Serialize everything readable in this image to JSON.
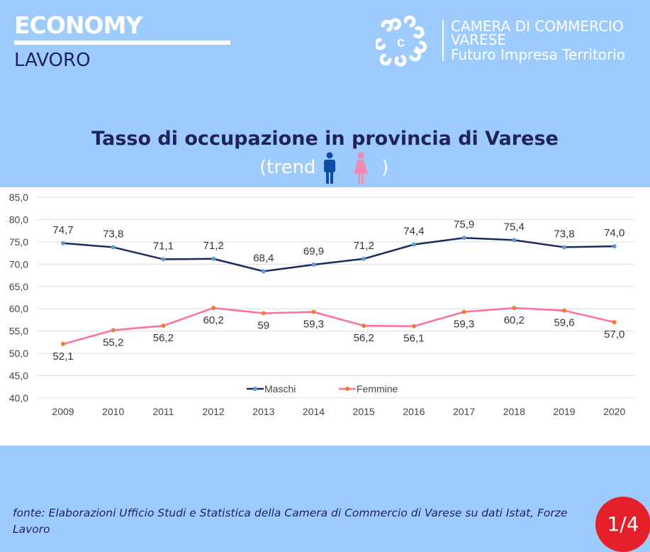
{
  "header": {
    "section": "ECONOMY",
    "subsection": "LAVORO",
    "org_lines": [
      "CAMERA DI COMMERCIO",
      "VARESE",
      "Futuro Impresa Territorio"
    ]
  },
  "title": "Tasso di occupazione in provincia di Varese",
  "subtitle_open": "(trend",
  "subtitle_close": ")",
  "icons": {
    "male": "male-figure-icon",
    "female": "female-figure-icon"
  },
  "colors": {
    "maschi": "#1b2a5e",
    "maschi_marker": "#5b9bd5",
    "femmine": "#ff6f9c",
    "femmine_marker": "#ed7d31",
    "background": "#9ecbfd"
  },
  "chart_data": {
    "type": "line",
    "title": "Tasso di occupazione in provincia di Varese",
    "categories": [
      "2009",
      "2010",
      "2011",
      "2012",
      "2013",
      "2014",
      "2015",
      "2016",
      "2017",
      "2018",
      "2019",
      "2020"
    ],
    "series": [
      {
        "name": "Maschi",
        "values": [
          74.7,
          73.8,
          71.1,
          71.2,
          68.4,
          69.9,
          71.2,
          74.4,
          75.9,
          75.4,
          73.8,
          74.0
        ],
        "labels": [
          "74,7",
          "73,8",
          "71,1",
          "71,2",
          "68,4",
          "69,9",
          "71,2",
          "74,4",
          "75,9",
          "75,4",
          "73,8",
          "74,0"
        ]
      },
      {
        "name": "Femmine",
        "values": [
          52.1,
          55.2,
          56.2,
          60.2,
          59,
          59.3,
          56.2,
          56.1,
          59.3,
          60.2,
          59.6,
          57.0
        ],
        "labels": [
          "52,1",
          "55,2",
          "56,2",
          "60,2",
          "59",
          "59,3",
          "56,2",
          "56,1",
          "59,3",
          "60,2",
          "59,6",
          "57,0"
        ]
      }
    ],
    "ylim": [
      40,
      85
    ],
    "yticks": [
      "40,0",
      "45,0",
      "50,0",
      "55,0",
      "60,0",
      "65,0",
      "70,0",
      "75,0",
      "80,0",
      "85,0"
    ],
    "grid": true,
    "legend": "bottom-center"
  },
  "footer": {
    "source": "fonte: Elaborazioni Ufficio Studi e Statistica della Camera di Commercio di Varese su dati Istat, Forze Lavoro",
    "page": "1/4"
  }
}
